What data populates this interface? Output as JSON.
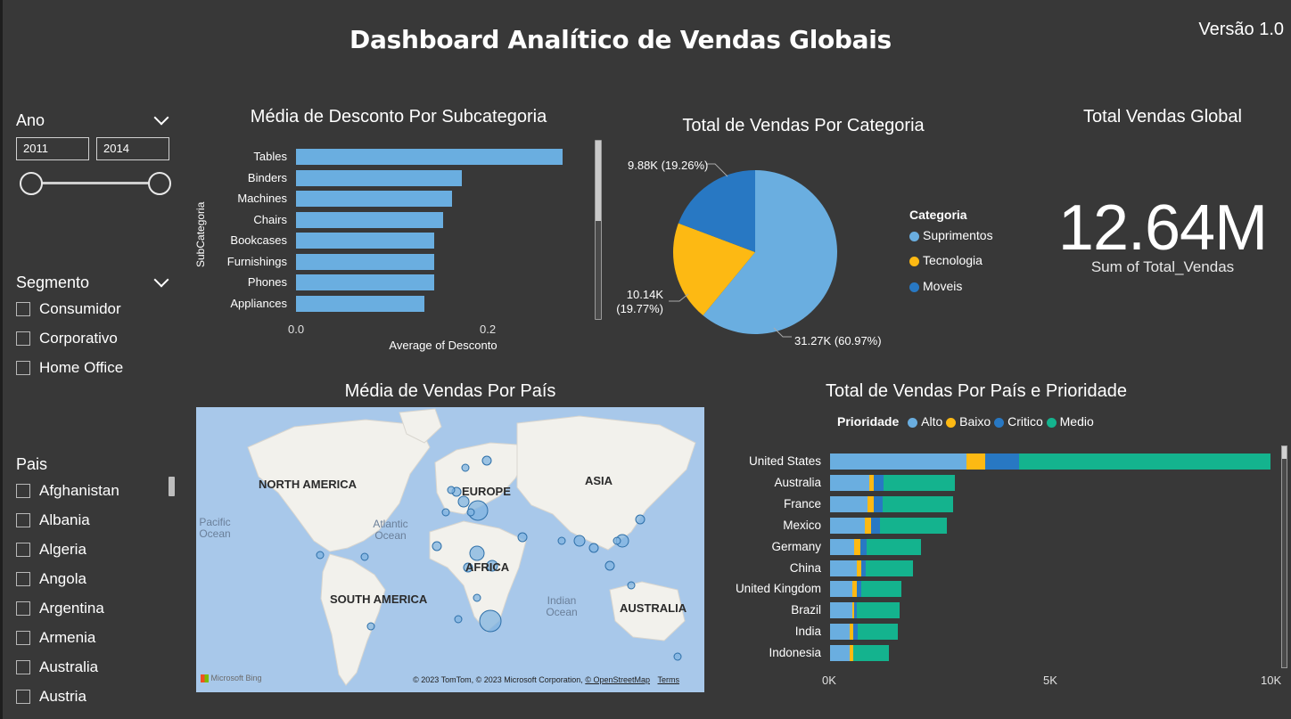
{
  "header": {
    "title": "Dashboard Analítico de Vendas Globais",
    "version": "Versão 1.0"
  },
  "colors": {
    "background": "#383838",
    "bar_blue": "#6aaee0",
    "alto": "#6aaee0",
    "baixo": "#fdb913",
    "critico": "#2878c3",
    "medio": "#14b38e",
    "suprimentos": "#6aaee0",
    "tecnologia": "#fdb913",
    "moveis": "#2878c3"
  },
  "filters": {
    "ano": {
      "label": "Ano",
      "from": "2011",
      "to": "2014"
    },
    "segmento": {
      "label": "Segmento",
      "items": [
        "Consumidor",
        "Corporativo",
        "Home Office"
      ]
    },
    "pais": {
      "label": "Pais",
      "items": [
        "Afghanistan",
        "Albania",
        "Algeria",
        "Angola",
        "Argentina",
        "Armenia",
        "Australia",
        "Austria"
      ]
    }
  },
  "desconto_chart": {
    "title": "Média de Desconto Por Subcategoria",
    "xlabel": "Average of Desconto",
    "ylabel": "SubCategoria",
    "ticks": [
      "0.0",
      "0.2"
    ]
  },
  "pie_chart": {
    "title": "Total de Vendas Por Categoria",
    "legend_title": "Categoria",
    "labels": {
      "moveis": "9.88K (19.26%)",
      "tecnologia_line1": "10.14K",
      "tecnologia_line2": "(19.77%)",
      "suprimentos": "31.27K (60.97%)"
    }
  },
  "kpi": {
    "title": "Total Vendas Global",
    "value": "12.64M",
    "caption": "Sum of Total_Vendas"
  },
  "map": {
    "title": "Média de Vendas Por País",
    "labels": {
      "north_america": "NORTH AMERICA",
      "europe": "EUROPE",
      "asia": "ASIA",
      "africa": "AFRICA",
      "south_america": "SOUTH AMERICA",
      "australia": "AUSTRALIA",
      "pacific_1": "Pacific",
      "pacific_2": "Ocean",
      "atlantic_1": "Atlantic",
      "atlantic_2": "Ocean",
      "indian_1": "Indian",
      "indian_2": "Ocean"
    },
    "bing": "Microsoft Bing",
    "copyright": "© 2023 TomTom, © 2023 Microsoft Corporation,",
    "osm": "© OpenStreetMap",
    "terms": "Terms"
  },
  "stacked_chart": {
    "title": "Total de Vendas Por País e Prioridade",
    "legend_title": "Prioridade",
    "ticks": [
      "0K",
      "5K",
      "10K"
    ]
  },
  "chart_data": [
    {
      "type": "bar",
      "title": "Média de Desconto Por Subcategoria",
      "orientation": "horizontal",
      "categories": [
        "Tables",
        "Binders",
        "Machines",
        "Chairs",
        "Bookcases",
        "Furnishings",
        "Phones",
        "Appliances"
      ],
      "values": [
        0.29,
        0.18,
        0.17,
        0.16,
        0.15,
        0.15,
        0.15,
        0.14
      ],
      "xlabel": "Average of Desconto",
      "ylabel": "SubCategoria",
      "xlim": [
        0,
        0.3
      ]
    },
    {
      "type": "pie",
      "title": "Total de Vendas Por Categoria",
      "categories": [
        "Suprimentos",
        "Tecnologia",
        "Moveis"
      ],
      "values": [
        31270,
        10140,
        9880
      ],
      "percentages": [
        60.97,
        19.77,
        19.26
      ],
      "legend": "right"
    },
    {
      "type": "bar",
      "title": "Total de Vendas Por País e Prioridade",
      "orientation": "horizontal",
      "stacked": true,
      "categories": [
        "United States",
        "Australia",
        "France",
        "Mexico",
        "Germany",
        "China",
        "United Kingdom",
        "Brazil",
        "India",
        "Indonesia"
      ],
      "series": [
        {
          "name": "Alto",
          "values": [
            3100,
            900,
            850,
            780,
            550,
            600,
            500,
            500,
            450,
            450
          ]
        },
        {
          "name": "Baixo",
          "values": [
            420,
            90,
            150,
            150,
            140,
            100,
            100,
            50,
            80,
            80
          ]
        },
        {
          "name": "Critico",
          "values": [
            780,
            230,
            200,
            210,
            150,
            110,
            110,
            50,
            100,
            0
          ]
        },
        {
          "name": "Medio",
          "values": [
            5700,
            1620,
            1600,
            1520,
            1220,
            1070,
            900,
            970,
            900,
            800
          ]
        }
      ],
      "xlim": [
        0,
        10000
      ],
      "legend": "top-left"
    }
  ]
}
